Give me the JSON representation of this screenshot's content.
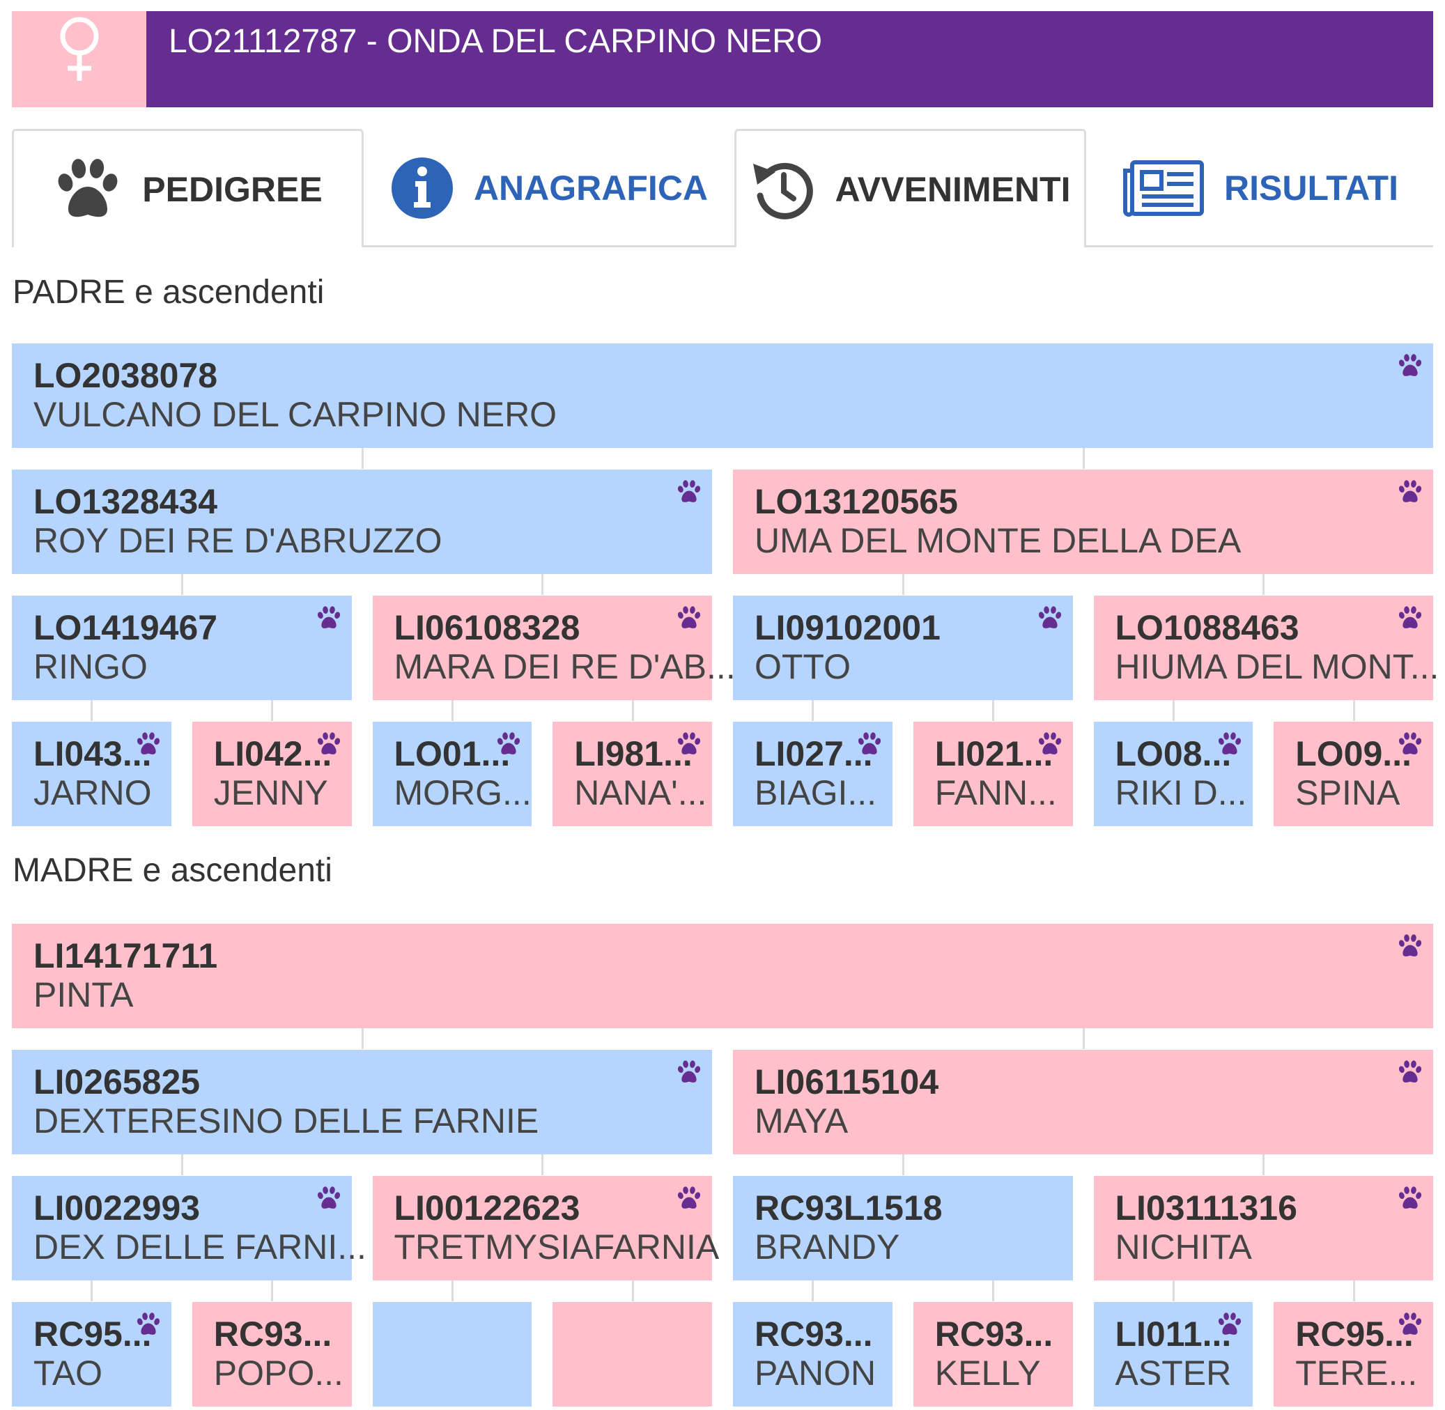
{
  "header": {
    "sex_icon": "female-symbol-icon",
    "title": "LO21112787 - ONDA DEL CARPINO NERO"
  },
  "tabs": [
    {
      "label": "PEDIGREE",
      "icon": "paw-icon"
    },
    {
      "label": "ANAGRAFICA",
      "icon": "info-icon"
    },
    {
      "label": "AVVENIMENTI",
      "icon": "history-icon"
    },
    {
      "label": "RISULTATI",
      "icon": "newspaper-icon"
    }
  ],
  "colors": {
    "male": "#B5D5FF",
    "female": "#FFC0CB",
    "header": "#662D91",
    "paw": "#662D91",
    "link_blue": "#2E64B8"
  },
  "padre": {
    "title": "PADRE e ascendenti",
    "g1": [
      {
        "code": "LO2038078",
        "name": "VULCANO DEL CARPINO NERO",
        "sex": "m",
        "paw": true
      }
    ],
    "g2": [
      {
        "code": "LO1328434",
        "name": "ROY DEI RE D'ABRUZZO",
        "sex": "m",
        "paw": true
      },
      {
        "code": "LO13120565",
        "name": "UMA DEL MONTE DELLA DEA",
        "sex": "f",
        "paw": true
      }
    ],
    "g3": [
      {
        "code": "LO1419467",
        "name": "RINGO",
        "sex": "m",
        "paw": true
      },
      {
        "code": "LI06108328",
        "name": "MARA DEI RE D'AB...",
        "sex": "f",
        "paw": true
      },
      {
        "code": "LI09102001",
        "name": "OTTO",
        "sex": "m",
        "paw": true
      },
      {
        "code": "LO1088463",
        "name": "HIUMA DEL MONT...",
        "sex": "f",
        "paw": true
      }
    ],
    "g4": [
      {
        "code": "LI043...",
        "name": "JARNO",
        "sex": "m",
        "paw": true
      },
      {
        "code": "LI042...",
        "name": "JENNY",
        "sex": "f",
        "paw": true
      },
      {
        "code": "LO01...",
        "name": "MORG...",
        "sex": "m",
        "paw": true
      },
      {
        "code": "LI981...",
        "name": "NANA'...",
        "sex": "f",
        "paw": true
      },
      {
        "code": "LI027...",
        "name": "BIAGI...",
        "sex": "m",
        "paw": true
      },
      {
        "code": "LI021...",
        "name": "FANN...",
        "sex": "f",
        "paw": true
      },
      {
        "code": "LO08...",
        "name": "RIKI D...",
        "sex": "m",
        "paw": true
      },
      {
        "code": "LO09...",
        "name": "SPINA",
        "sex": "f",
        "paw": true
      }
    ]
  },
  "madre": {
    "title": "MADRE e ascendenti",
    "g1": [
      {
        "code": "LI14171711",
        "name": "PINTA",
        "sex": "f",
        "paw": true
      }
    ],
    "g2": [
      {
        "code": "LI0265825",
        "name": "DEXTERESINO DELLE FARNIE",
        "sex": "m",
        "paw": true
      },
      {
        "code": "LI06115104",
        "name": "MAYA",
        "sex": "f",
        "paw": true
      }
    ],
    "g3": [
      {
        "code": "LI0022993",
        "name": "DEX DELLE FARNI...",
        "sex": "m",
        "paw": true
      },
      {
        "code": "LI00122623",
        "name": "TRETMYSIAFARNIA",
        "sex": "f",
        "paw": true
      },
      {
        "code": "RC93L1518",
        "name": "BRANDY",
        "sex": "m",
        "paw": false
      },
      {
        "code": "LI03111316",
        "name": "NICHITA",
        "sex": "f",
        "paw": true
      }
    ],
    "g4": [
      {
        "code": "RC95...",
        "name": "TAO",
        "sex": "m",
        "paw": true
      },
      {
        "code": "RC93...",
        "name": "POPO...",
        "sex": "f",
        "paw": false
      },
      {
        "code": "",
        "name": "",
        "sex": "m",
        "paw": false
      },
      {
        "code": "",
        "name": "",
        "sex": "f",
        "paw": false
      },
      {
        "code": "RC93...",
        "name": "PANON",
        "sex": "m",
        "paw": false
      },
      {
        "code": "RC93...",
        "name": "KELLY",
        "sex": "f",
        "paw": false
      },
      {
        "code": "LI011...",
        "name": "ASTER",
        "sex": "m",
        "paw": true
      },
      {
        "code": "RC95...",
        "name": "TERE...",
        "sex": "f",
        "paw": true
      }
    ]
  }
}
